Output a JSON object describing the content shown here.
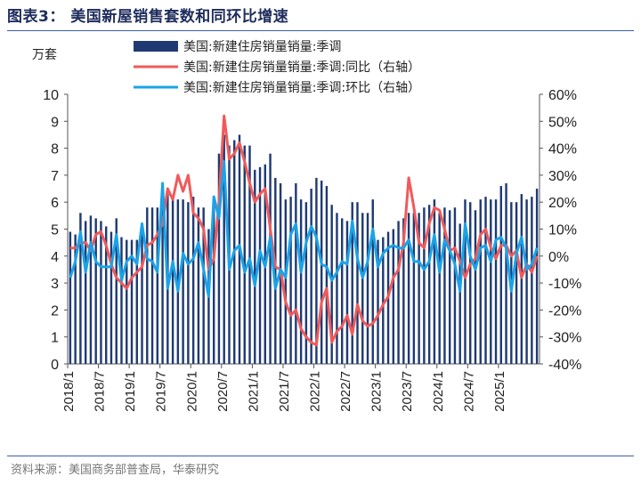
{
  "figure": {
    "title": "图表3：  美国新屋销售套数和同环比增速",
    "source": "资料来源：美国商务部普查局，华泰研究"
  },
  "colors": {
    "bars": "#1f3a73",
    "yoy": "#f05a5a",
    "mom": "#1aa3e8",
    "title": "#1f2d5c",
    "rule": "#3a5fa8"
  },
  "chart_data": {
    "type": "bar",
    "left_unit": "万套",
    "ylim_left": [
      0,
      10
    ],
    "ylim_right": [
      -40,
      60
    ],
    "left_ticks": [
      "0",
      "1",
      "2",
      "3",
      "4",
      "5",
      "6",
      "7",
      "8",
      "9",
      "10"
    ],
    "right_ticks": [
      "-40%",
      "-30%",
      "-20%",
      "-10%",
      "0%",
      "10%",
      "20%",
      "30%",
      "40%",
      "50%",
      "60%"
    ],
    "x_tick_labels": [
      "2018/1",
      "2018/7",
      "2019/1",
      "2019/7",
      "2020/1",
      "2020/7",
      "2021/1",
      "2021/7",
      "2022/1",
      "2022/7",
      "2023/1",
      "2023/7",
      "2024/1",
      "2024/7",
      "2025/1"
    ],
    "legend": [
      {
        "label": "美国:新建住房销量销量:季调",
        "kind": "bar"
      },
      {
        "label": "美国:新建住房销量销量:季调:同比（右轴）",
        "kind": "line"
      },
      {
        "label": "美国:新建住房销量销量:季调:环比（右轴）",
        "kind": "line"
      }
    ],
    "x": [
      "2018/1",
      "2018/2",
      "2018/3",
      "2018/4",
      "2018/5",
      "2018/6",
      "2018/7",
      "2018/8",
      "2018/9",
      "2018/10",
      "2018/11",
      "2018/12",
      "2019/1",
      "2019/2",
      "2019/3",
      "2019/4",
      "2019/5",
      "2019/6",
      "2019/7",
      "2019/8",
      "2019/9",
      "2019/10",
      "2019/11",
      "2019/12",
      "2020/1",
      "2020/2",
      "2020/3",
      "2020/4",
      "2020/5",
      "2020/6",
      "2020/7",
      "2020/8",
      "2020/9",
      "2020/10",
      "2020/11",
      "2020/12",
      "2021/1",
      "2021/2",
      "2021/3",
      "2021/4",
      "2021/5",
      "2021/6",
      "2021/7",
      "2021/8",
      "2021/9",
      "2021/10",
      "2021/11",
      "2021/12",
      "2022/1",
      "2022/2",
      "2022/3",
      "2022/4",
      "2022/5",
      "2022/6",
      "2022/7",
      "2022/8",
      "2022/9",
      "2022/10",
      "2022/11",
      "2022/12",
      "2023/1",
      "2023/2",
      "2023/3",
      "2023/4",
      "2023/5",
      "2023/6",
      "2023/7",
      "2023/8",
      "2023/9",
      "2023/10",
      "2023/11",
      "2023/12",
      "2024/1",
      "2024/2",
      "2024/3",
      "2024/4",
      "2024/5",
      "2024/6",
      "2024/7",
      "2024/8",
      "2024/9",
      "2024/10",
      "2024/11",
      "2024/12",
      "2025/1",
      "2025/2",
      "2025/3",
      "2025/4",
      "2025/5",
      "2025/6",
      "2025/7",
      "2025/8"
    ],
    "series": [
      {
        "name": "美国:新建住房销量销量:季调",
        "axis": "left",
        "type": "bar",
        "values": [
          4.9,
          4.8,
          5.6,
          5.3,
          5.5,
          5.4,
          5.3,
          5.1,
          4.9,
          5.4,
          4.7,
          4.6,
          4.6,
          4.6,
          5.2,
          5.8,
          5.8,
          5.8,
          6.2,
          6.3,
          6.2,
          6.1,
          6.1,
          6.0,
          6.2,
          5.8,
          5.8,
          5.0,
          6.0,
          7.8,
          8.5,
          8.1,
          8.3,
          8.5,
          8.1,
          8.1,
          7.2,
          7.3,
          7.4,
          7.8,
          6.9,
          6.7,
          6.1,
          6.2,
          6.7,
          6.1,
          6.0,
          6.5,
          6.9,
          6.8,
          6.6,
          5.9,
          5.6,
          5.4,
          5.3,
          6.0,
          6.0,
          5.6,
          5.6,
          6.1,
          4.6,
          4.7,
          4.9,
          5.0,
          5.3,
          5.4,
          5.6,
          5.6,
          5.6,
          5.8,
          5.9,
          6.1,
          5.6,
          5.8,
          5.7,
          5.8,
          5.2,
          6.1,
          6.0,
          5.7,
          6.1,
          6.2,
          6.1,
          6.1,
          6.6,
          6.7,
          6.0,
          6.0,
          6.3,
          6.1,
          6.2,
          6.5
        ]
      },
      {
        "name": "美国:新建住房销量销量:季调:同比（右轴）",
        "axis": "right",
        "type": "line",
        "values": [
          3,
          3,
          5,
          5,
          2,
          8,
          9,
          4,
          -3,
          -8,
          -10,
          -12,
          -8,
          -6,
          -4,
          4,
          5,
          8,
          12,
          25,
          21,
          30,
          24,
          30,
          16,
          14,
          10,
          -5,
          -1,
          20,
          52,
          36,
          38,
          42,
          35,
          27,
          20,
          23,
          25,
          10,
          -4,
          -5,
          -17,
          -22,
          -20,
          -27,
          -30,
          -32,
          -33,
          -17,
          -12,
          -32,
          -28,
          -26,
          -22,
          -29,
          -18,
          -24,
          -26,
          -25,
          -22,
          -18,
          -15,
          -8,
          -5,
          5,
          29,
          18,
          5,
          3,
          12,
          18,
          17,
          10,
          2,
          3,
          -2,
          -8,
          -3,
          -1,
          8,
          10,
          3,
          -1,
          4,
          4,
          0,
          2,
          -8,
          -3,
          -6,
          0
        ]
      },
      {
        "name": "美国:新建住房销量销量:季调:环比（右轴）",
        "axis": "right",
        "type": "line",
        "values": [
          -8,
          -2,
          9,
          -6,
          5,
          -2,
          -4,
          -4,
          -4,
          8,
          -9,
          -2,
          0,
          -3,
          12,
          -1,
          -2,
          -6,
          27,
          -12,
          -2,
          -13,
          1,
          -3,
          -1,
          5,
          -5,
          -15,
          22,
          14,
          35,
          -5,
          2,
          4,
          -6,
          -1,
          -11,
          2,
          -4,
          7,
          -12,
          -5,
          -8,
          8,
          12,
          -6,
          5,
          11,
          7,
          -3,
          -4,
          -9,
          -6,
          -2,
          -3,
          13,
          -1,
          -8,
          -2,
          10,
          -4,
          1,
          3,
          4,
          3,
          3,
          6,
          -2,
          -2,
          -5,
          -2,
          8,
          -6,
          6,
          2,
          -3,
          -13,
          12,
          0,
          -5,
          3,
          4,
          -2,
          6,
          7,
          3,
          -13,
          1,
          7,
          -5,
          -3,
          3
        ]
      }
    ]
  }
}
